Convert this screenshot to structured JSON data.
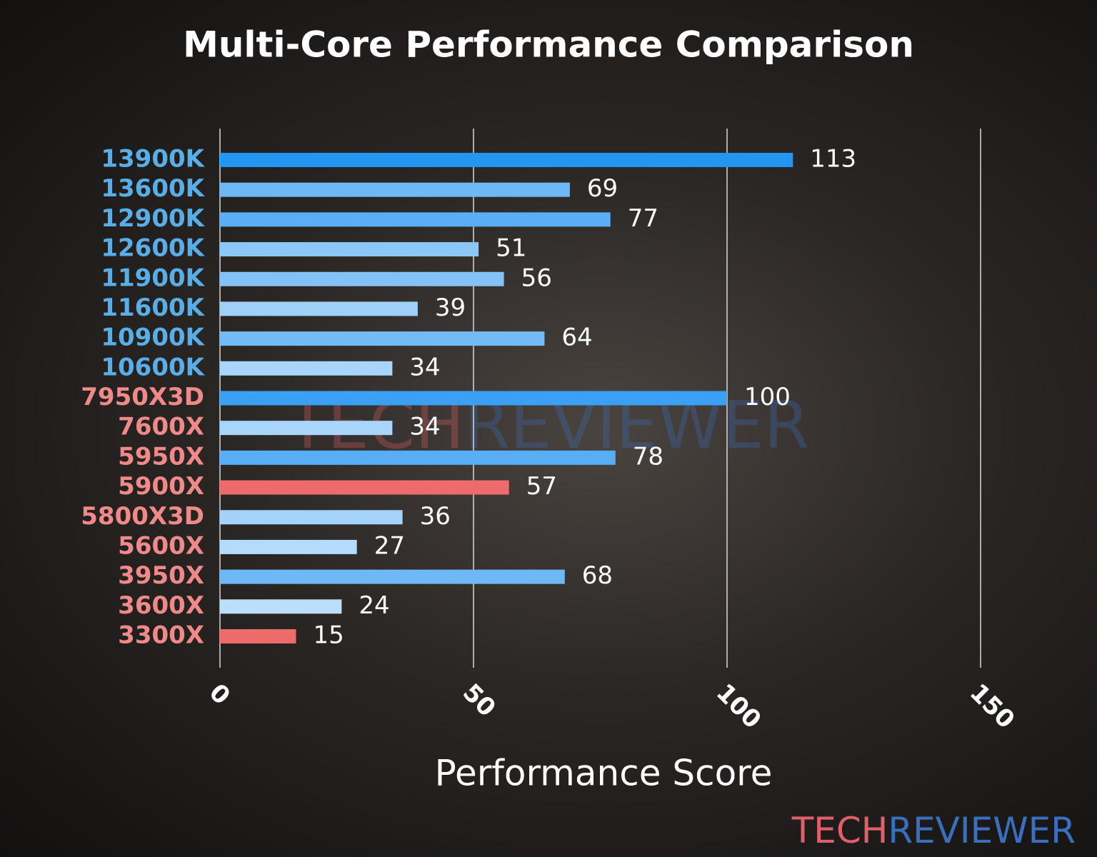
{
  "chart_data": {
    "type": "barh",
    "title": "Multi-Core Performance Comparison",
    "xlabel": "Performance Score",
    "categories": [
      "13900K",
      "13600K",
      "12900K",
      "12600K",
      "11900K",
      "11600K",
      "10900K",
      "10600K",
      "7950X3D",
      "7600X",
      "5950X",
      "5900X",
      "5800X3D",
      "5600X",
      "3950X",
      "3600X",
      "3300X"
    ],
    "values": [
      113,
      69,
      77,
      51,
      56,
      39,
      64,
      34,
      100,
      34,
      78,
      57,
      36,
      27,
      68,
      24,
      15
    ],
    "colors": [
      "#2196f3",
      "#6db8f5",
      "#5aaef5",
      "#8cc8f7",
      "#82c2f7",
      "#9ed0f8",
      "#72bbf6",
      "#a8d5f9",
      "#3aa0f3",
      "#a8d5f9",
      "#58adf4",
      "#ee6b6b",
      "#a3d3f9",
      "#b3dbfa",
      "#6db8f5",
      "#bbdffb",
      "#ee6b6b"
    ],
    "label_colors": [
      "#5aaee8",
      "#5aaee8",
      "#5aaee8",
      "#5aaee8",
      "#5aaee8",
      "#5aaee8",
      "#5aaee8",
      "#5aaee8",
      "#f08a8a",
      "#f08a8a",
      "#f08a8a",
      "#f08a8a",
      "#f08a8a",
      "#f08a8a",
      "#f08a8a",
      "#f08a8a",
      "#f08a8a"
    ],
    "xlim": [
      0,
      150
    ],
    "xticks": [
      0,
      50,
      100,
      150
    ],
    "grid": true,
    "watermark": [
      "TECH",
      "REVIEWER"
    ]
  }
}
